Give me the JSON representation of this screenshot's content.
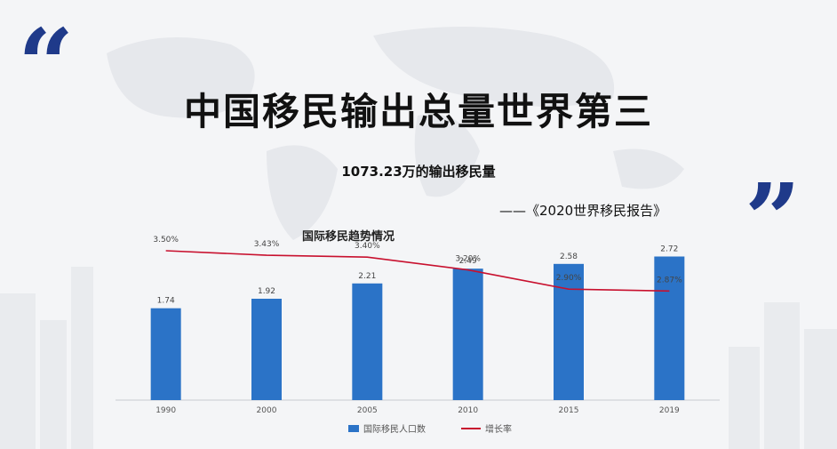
{
  "header": {
    "open_quote": "“",
    "close_quote": "”",
    "title": "中国移民输出总量世界第三",
    "subtitle": "1073.23万的输出移民量",
    "source": "——《2020世界移民报告》"
  },
  "colors": {
    "quote": "#1f3a8a",
    "bar": "#2b73c7",
    "line": "#c8102e"
  },
  "chart_data": {
    "type": "bar",
    "title": "国际移民趋势情况",
    "categories": [
      "1990",
      "2000",
      "2005",
      "2010",
      "2015",
      "2019"
    ],
    "series": [
      {
        "name": "国际移民人口数",
        "type": "bar",
        "values": [
          1.74,
          1.92,
          2.21,
          2.49,
          2.58,
          2.72
        ]
      },
      {
        "name": "增长率",
        "type": "line",
        "values": [
          "3.50%",
          "3.43%",
          "3.40%",
          "3.20%",
          "2.90%",
          "2.87%"
        ],
        "numeric": [
          3.5,
          3.43,
          3.4,
          3.2,
          2.9,
          2.87
        ]
      }
    ],
    "ylim": [
      0,
      3.2
    ],
    "legend_position": "bottom"
  }
}
